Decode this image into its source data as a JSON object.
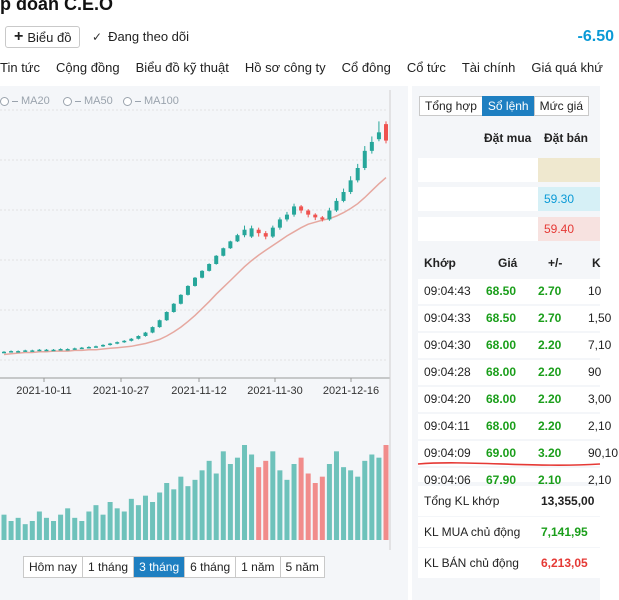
{
  "header": {
    "title": "p đoàn C.E.O",
    "price": "-6.50",
    "chart_button": "Biểu đồ",
    "follow_label": "Đang theo dõi"
  },
  "nav": [
    "Tin tức",
    "Cộng đồng",
    "Biểu đồ kỹ thuật",
    "Hồ sơ công ty",
    "Cổ đông",
    "Cổ tức",
    "Tài chính",
    "Giá quá khứ"
  ],
  "ma_legend": [
    "MA20",
    "MA50",
    "MA100"
  ],
  "periods": {
    "items": [
      "Hôm nay",
      "1 tháng",
      "3 tháng",
      "6 tháng",
      "1 năm",
      "5 năm"
    ],
    "active": "3 tháng"
  },
  "colors": {
    "up": "#26a69a",
    "down": "#ef5350",
    "ma": "#e6a8a0",
    "accent": "#1e7fc1"
  },
  "chart_data": {
    "type": "candlestick",
    "x_tick_labels": [
      "2021-10-11",
      "2021-10-27",
      "2021-11-12",
      "2021-11-30",
      "2021-12-16"
    ],
    "series": [
      {
        "name": "price",
        "close": [
          34.2,
          34.3,
          34.3,
          34.4,
          34.4,
          34.5,
          34.5,
          34.5,
          34.6,
          34.6,
          34.7,
          34.8,
          34.9,
          35.0,
          35.2,
          35.4,
          35.6,
          35.8,
          36.1,
          36.5,
          37.0,
          37.8,
          38.8,
          40.0,
          41.2,
          42.5,
          43.8,
          45.0,
          46.0,
          47.0,
          48.2,
          49.3,
          50.3,
          51.2,
          52.0,
          52.2,
          51.5,
          51.0,
          52.3,
          53.5,
          54.2,
          55.4,
          54.8,
          54.2,
          53.8,
          53.5,
          54.8,
          56.2,
          57.5,
          59.2,
          61.0,
          63.5,
          64.8,
          66.2,
          65.0
        ],
        "open": [
          34.1,
          34.2,
          34.3,
          34.3,
          34.4,
          34.4,
          34.5,
          34.5,
          34.5,
          34.6,
          34.6,
          34.7,
          34.8,
          34.9,
          35.0,
          35.2,
          35.4,
          35.6,
          35.8,
          36.1,
          36.5,
          37.0,
          37.8,
          38.8,
          40.0,
          41.2,
          42.5,
          43.8,
          45.0,
          46.0,
          47.0,
          48.2,
          49.3,
          50.3,
          51.2,
          51.0,
          52.0,
          51.5,
          51.0,
          52.3,
          53.5,
          54.2,
          55.4,
          54.8,
          54.2,
          53.8,
          53.5,
          54.8,
          56.2,
          57.5,
          59.2,
          61.0,
          63.5,
          65.2,
          67.4
        ],
        "high": [
          34.3,
          34.4,
          34.4,
          34.5,
          34.5,
          34.6,
          34.6,
          34.6,
          34.7,
          34.7,
          34.8,
          34.9,
          35.0,
          35.1,
          35.3,
          35.5,
          35.7,
          35.9,
          36.2,
          36.6,
          37.1,
          37.9,
          38.9,
          40.1,
          41.3,
          42.6,
          43.9,
          45.1,
          46.1,
          47.1,
          48.3,
          49.4,
          50.4,
          51.4,
          52.6,
          52.6,
          52.3,
          51.8,
          52.6,
          53.8,
          54.6,
          55.8,
          55.6,
          55.0,
          54.4,
          54.0,
          55.2,
          56.6,
          58.0,
          59.8,
          61.6,
          64.2,
          65.6,
          67.8,
          67.8
        ],
        "low": [
          34.0,
          34.1,
          34.2,
          34.2,
          34.3,
          34.3,
          34.4,
          34.4,
          34.4,
          34.5,
          34.5,
          34.6,
          34.7,
          34.8,
          34.9,
          35.1,
          35.3,
          35.5,
          35.7,
          36.0,
          36.4,
          36.9,
          37.7,
          38.7,
          39.9,
          41.1,
          42.4,
          43.7,
          44.9,
          45.9,
          46.9,
          48.1,
          49.2,
          50.2,
          50.9,
          50.8,
          51.0,
          50.6,
          50.8,
          52.0,
          53.2,
          53.9,
          54.4,
          53.8,
          53.4,
          53.2,
          53.3,
          54.6,
          56.0,
          57.2,
          58.9,
          60.7,
          63.1,
          64.9,
          64.6
        ],
        "volume": [
          8,
          6,
          7,
          5,
          6,
          9,
          7,
          6,
          8,
          10,
          7,
          6,
          9,
          11,
          8,
          12,
          10,
          9,
          13,
          11,
          14,
          12,
          15,
          18,
          16,
          20,
          17,
          19,
          22,
          25,
          21,
          28,
          24,
          26,
          30,
          27,
          23,
          25,
          28,
          22,
          19,
          24,
          26,
          21,
          18,
          20,
          24,
          28,
          23,
          22,
          20,
          25,
          27,
          26,
          30
        ]
      },
      {
        "name": "MA",
        "values": [
          33.8,
          33.9,
          34.0,
          34.1,
          34.1,
          34.2,
          34.2,
          34.3,
          34.3,
          34.3,
          34.4,
          34.4,
          34.5,
          34.5,
          34.6,
          34.7,
          34.8,
          34.9,
          35.0,
          35.2,
          35.4,
          35.7,
          36.0,
          36.5,
          37.1,
          37.8,
          38.6,
          39.5,
          40.5,
          41.5,
          42.6,
          43.6,
          44.6,
          45.6,
          46.6,
          47.5,
          48.3,
          49.0,
          49.7,
          50.4,
          51.1,
          51.7,
          52.3,
          52.8,
          53.1,
          53.4,
          53.6,
          54.0,
          54.5,
          55.1,
          55.8,
          56.7,
          57.7,
          58.7,
          59.6
        ]
      }
    ],
    "ylim": [
      33,
      68
    ]
  },
  "right": {
    "tabs": [
      "Tổng hợp",
      "Sổ lệnh",
      "Mức giá"
    ],
    "active_tab": "Sổ lệnh",
    "orderbook_headers": [
      "Đặt mua",
      "Đặt bán"
    ],
    "orderbook_sell_prices": [
      "59.30",
      "59.40"
    ],
    "trade_headers": [
      "Khớp",
      "Giá",
      "+/-",
      "K"
    ],
    "trades": [
      {
        "time": "09:04:43",
        "price": "68.50",
        "change": "2.70",
        "vol": "10"
      },
      {
        "time": "09:04:33",
        "price": "68.50",
        "change": "2.70",
        "vol": "1,50"
      },
      {
        "time": "09:04:30",
        "price": "68.00",
        "change": "2.20",
        "vol": "7,10"
      },
      {
        "time": "09:04:28",
        "price": "68.00",
        "change": "2.20",
        "vol": "90"
      },
      {
        "time": "09:04:20",
        "price": "68.00",
        "change": "2.20",
        "vol": "3,00"
      },
      {
        "time": "09:04:11",
        "price": "68.00",
        "change": "2.20",
        "vol": "2,10"
      },
      {
        "time": "09:04:09",
        "price": "69.00",
        "change": "3.20",
        "vol": "90,10"
      },
      {
        "time": "09:04:06",
        "price": "67.90",
        "change": "2.10",
        "vol": "2,10"
      }
    ],
    "summary": [
      {
        "label": "Tổng KL khớp",
        "value": "13,355,00",
        "color": "#222222"
      },
      {
        "label": "KL MUA chủ động",
        "value": "7,141,95",
        "color": "#1a9e1a"
      },
      {
        "label": "KL BÁN chủ động",
        "value": "6,213,05",
        "color": "#e53935"
      }
    ]
  }
}
